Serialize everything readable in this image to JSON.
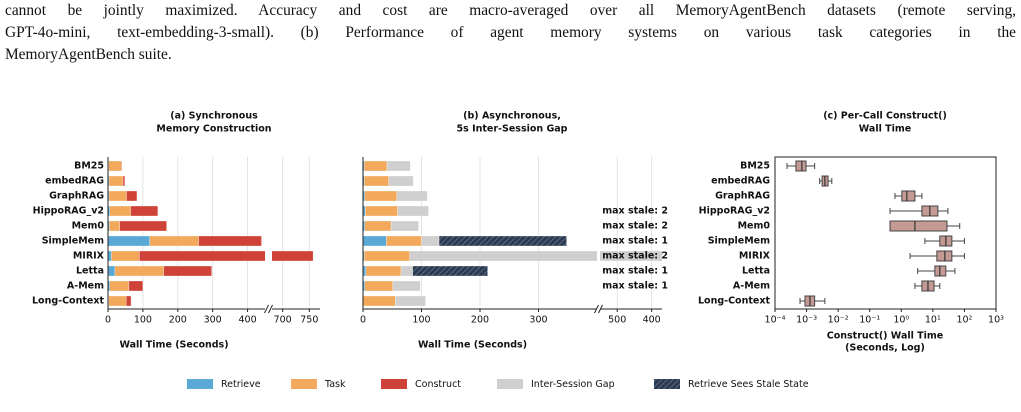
{
  "caption": [
    "cannot be jointly maximized. Accuracy and cost are macro-averaged over all MemoryAgentBench datasets (remote serving,",
    "GPT-4o-mini, text-embedding-3-small). (b) Performance of agent memory systems on various task categories in the",
    "MemoryAgentBench suite."
  ],
  "legend": [
    {
      "name": "Retrieve",
      "color": "#5aa8d6"
    },
    {
      "name": "Task",
      "color": "#f2a95c"
    },
    {
      "name": "Construct",
      "color": "#cf4237"
    },
    {
      "name": "Inter-Session Gap",
      "color": "#cfcfcf"
    },
    {
      "name": "Retrieve Sees Stale State",
      "color": "#2d3b52"
    }
  ],
  "chart_data": [
    {
      "type": "stacked-bar",
      "title": [
        "(a) Synchronous",
        "Memory Construction"
      ],
      "xlabel": "Wall Time (Seconds)",
      "categories": [
        "BM25",
        "embedRAG",
        "GraphRAG",
        "HippoRAG_v2",
        "Mem0",
        "SimpleMem",
        "MIRIX",
        "Letta",
        "A-Mem",
        "Long-Context"
      ],
      "series": [
        {
          "name": "Retrieve",
          "values": [
            2,
            3,
            3,
            5,
            4,
            120,
            10,
            20,
            5,
            2
          ]
        },
        {
          "name": "Task",
          "values": [
            36,
            40,
            50,
            60,
            30,
            140,
            80,
            140,
            55,
            50
          ]
        },
        {
          "name": "Construct",
          "values": [
            2,
            5,
            30,
            78,
            134,
            180,
            667,
            137,
            40,
            14
          ]
        }
      ],
      "xlim": [
        [
          0,
          450
        ],
        [
          680,
          770
        ]
      ],
      "xticks": [
        [
          0,
          100,
          200,
          300,
          400
        ],
        [
          700,
          750
        ]
      ],
      "grid": true
    },
    {
      "type": "stacked-bar",
      "title": [
        "(b) Asynchronous,",
        "5s Inter-Session Gap"
      ],
      "xlabel": "Wall Time (Seconds)",
      "series": [
        {
          "name": "Retrieve",
          "values": [
            2,
            2,
            3,
            4,
            3,
            40,
            2,
            5,
            3,
            0
          ]
        },
        {
          "name": "Task",
          "values": [
            39,
            42,
            55,
            55,
            45,
            60,
            78,
            60,
            48,
            55
          ]
        },
        {
          "name": "Inter-Session Gap",
          "values": [
            40,
            42,
            52,
            53,
            47,
            30,
            480,
            20,
            47,
            52
          ]
        },
        {
          "name": "Retrieve Sees Stale State",
          "values": [
            0,
            0,
            0,
            0,
            0,
            218,
            0,
            128,
            0,
            0
          ]
        }
      ],
      "annotations": [
        null,
        null,
        null,
        "max stale: 2",
        "max stale: 2",
        "max stale: 1",
        "max stale: 2",
        "max stale: 1",
        "max stale: 1",
        null
      ],
      "xlim": [
        [
          0,
          400
        ],
        [
          550,
          370
        ]
      ],
      "xticks": [
        [
          0,
          100,
          200,
          300
        ],
        [
          500,
          400
        ]
      ],
      "grid": true
    },
    {
      "type": "box",
      "title": [
        "(c) Per-Call Construct()",
        "Wall Time"
      ],
      "xlabel": [
        "Construct() Wall Time",
        "(Seconds, Log)"
      ],
      "categories": [
        "BM25",
        "embedRAG",
        "GraphRAG",
        "HippoRAG_v2",
        "Mem0",
        "SimpleMem",
        "MIRIX",
        "Letta",
        "A-Mem",
        "Long-Context"
      ],
      "whislo": [
        0.00024,
        0.0026,
        0.63,
        0.44,
        0.44,
        5.6,
        1.9,
        3.3,
        2.7,
        0.00062
      ],
      "q1": [
        0.00046,
        0.0031,
        1.04,
        4.5,
        0.44,
        16.6,
        13.4,
        11.6,
        4.5,
        0.00089
      ],
      "med": [
        0.00071,
        0.0038,
        1.5,
        8.0,
        2.7,
        25.7,
        24,
        16.6,
        7,
        0.00128
      ],
      "q3": [
        0.00096,
        0.0048,
        2.7,
        14.4,
        28,
        40,
        40,
        25.7,
        10.9,
        0.0018
      ],
      "whishi": [
        0.0018,
        0.0063,
        4.5,
        30,
        71,
        100,
        100,
        50,
        16.6,
        0.0038
      ],
      "color": "#c49a94",
      "xscale": "log",
      "xlim": [
        0.0001,
        1000
      ],
      "xticks": [
        {
          "value": 0.0001,
          "label": "10⁻⁴"
        },
        {
          "value": 0.001,
          "label": "10⁻³"
        },
        {
          "value": 0.01,
          "label": "10⁻²"
        },
        {
          "value": 0.1,
          "label": "10⁻¹"
        },
        {
          "value": 1,
          "label": "10⁰"
        },
        {
          "value": 10,
          "label": "10¹"
        },
        {
          "value": 100,
          "label": "10²"
        },
        {
          "value": 1000,
          "label": "10³"
        }
      ]
    }
  ]
}
